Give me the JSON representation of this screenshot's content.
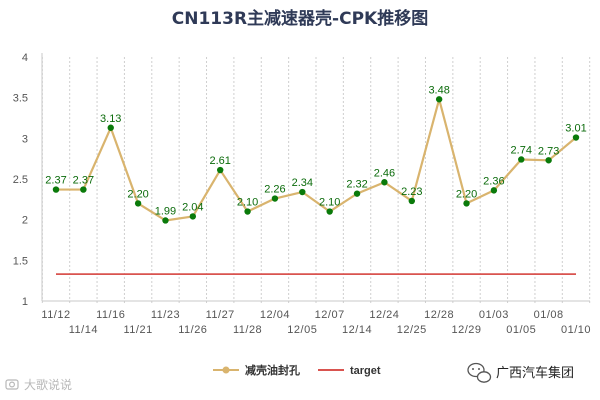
{
  "chart_data": {
    "type": "line",
    "title": "CN113R主减速器壳-CPK推移图",
    "ylim": [
      1,
      4
    ],
    "yticks": [
      "1",
      "1.5",
      "2",
      "2.5",
      "3",
      "3.5",
      "4"
    ],
    "categories": [
      "11/12",
      "11/14",
      "11/16",
      "11/21",
      "11/23",
      "11/26",
      "11/27",
      "11/28",
      "12/04",
      "12/05",
      "12/07",
      "12/14",
      "12/24",
      "12/25",
      "12/28",
      "12/29",
      "01/03",
      "01/05",
      "01/08",
      "01/10"
    ],
    "series": [
      {
        "name": "减壳油封孔",
        "color": "#d9b46e",
        "values": [
          2.37,
          2.37,
          3.13,
          2.2,
          1.99,
          2.04,
          2.61,
          2.1,
          2.26,
          2.34,
          2.1,
          2.32,
          2.46,
          2.23,
          3.48,
          2.2,
          2.36,
          2.74,
          2.73,
          3.01
        ],
        "labels": [
          "2.37",
          "2.37",
          "3.13",
          "2.20",
          "1.99",
          "2.04",
          "2.61",
          "2.10",
          "2.26",
          "2.34",
          "2.10",
          "2.32",
          "2.46",
          "2.23",
          "3.48",
          "2.20",
          "2.36",
          "2.74",
          "2.73",
          "3.01"
        ],
        "marker_color": "#0a7a0a"
      },
      {
        "name": "target",
        "color": "#d9534f",
        "values": [
          1.33,
          1.33,
          1.33,
          1.33,
          1.33,
          1.33,
          1.33,
          1.33,
          1.33,
          1.33,
          1.33,
          1.33,
          1.33,
          1.33,
          1.33,
          1.33,
          1.33,
          1.33,
          1.33,
          1.33
        ]
      }
    ],
    "grid": "vertical-dashed",
    "legend_position": "bottom-center"
  },
  "watermark": {
    "text": "大歌说说",
    "icon": "camera-icon",
    "brand": "广西汽车集团",
    "brand_icon": "wechat-icon"
  }
}
